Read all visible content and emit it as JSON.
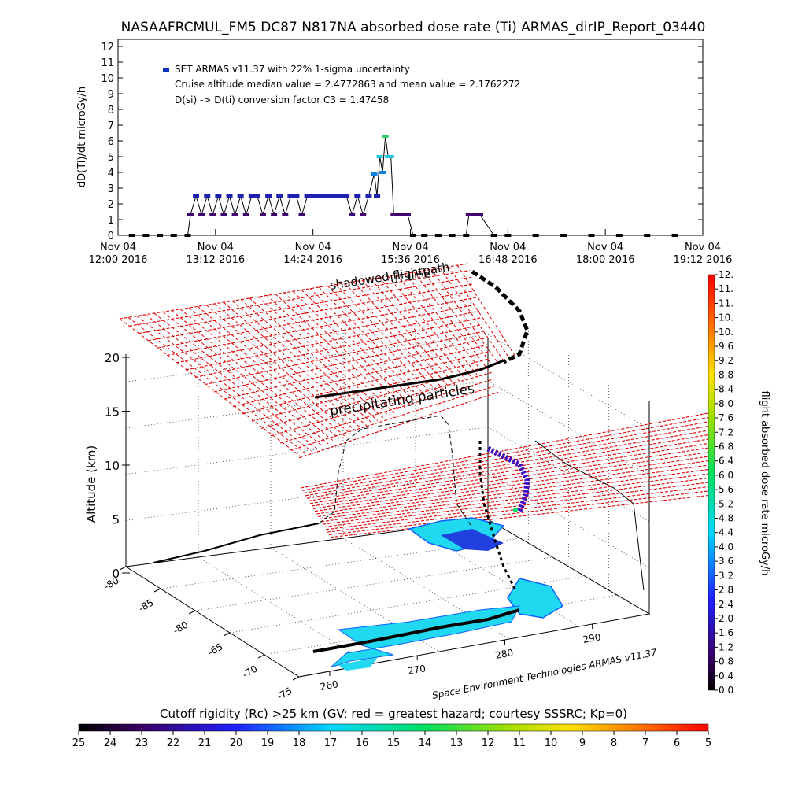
{
  "title": "NASAAFRCMUL_FM5 DC87 N817NA absorbed dose rate (Ti) ARMAS_dirIP_Report_03440",
  "chart_data": [
    {
      "type": "line",
      "ylabel": "dD(Ti)/dt microGy/h",
      "ylim": [
        0,
        12
      ],
      "yticks": [
        "0",
        "1",
        "2",
        "3",
        "4",
        "5",
        "6",
        "7",
        "8",
        "9",
        "10",
        "11",
        "12"
      ],
      "xticks": [
        {
          "l1": "Nov 04",
          "l2": "12:00 2016"
        },
        {
          "l1": "Nov 04",
          "l2": "13:12 2016"
        },
        {
          "l1": "Nov 04",
          "l2": "14:24 2016"
        },
        {
          "l1": "Nov 04",
          "l2": "15:36 2016"
        },
        {
          "l1": "Nov 04",
          "l2": "16:48 2016"
        },
        {
          "l1": "Nov 04",
          "l2": "18:00 2016"
        },
        {
          "l1": "Nov 04",
          "l2": "19:12 2016"
        }
      ],
      "legend": {
        "series_label": "SET ARMAS v11.37 with 22% 1-sigma uncertainty",
        "median_line": "Cruise altitude median value = 2.4772863 and mean value = 2.1762272",
        "conversion_line": "D(si) -> D(ti) conversion factor C3 = 1.47458"
      },
      "series": [
        {
          "x": [
            0.5,
            1.0,
            1.5,
            2.0,
            2.5,
            2.6,
            2.8,
            3.0,
            3.2,
            3.4,
            3.6,
            3.8,
            4.0,
            4.2,
            4.4,
            4.6,
            4.8,
            5.0,
            5.2,
            5.4,
            5.6,
            5.8,
            6.0,
            6.2,
            6.4,
            6.6,
            6.8,
            7.0,
            7.2,
            7.4,
            7.6,
            7.8,
            8.0,
            8.2,
            8.4,
            8.6,
            8.8,
            9.0,
            9.2,
            9.3,
            9.4,
            9.5,
            9.6,
            9.7,
            9.8,
            9.9,
            10.0,
            10.2,
            10.4,
            10.6,
            11.0,
            11.5,
            12.0,
            12.5,
            12.6,
            12.8,
            13.0,
            13.5,
            14.0,
            15.0,
            16.0,
            17.0,
            18.0,
            19.0,
            20.0
          ],
          "y": [
            0,
            0,
            0,
            0,
            0,
            1.3,
            2.5,
            1.3,
            2.5,
            1.3,
            2.5,
            1.3,
            2.5,
            1.3,
            2.5,
            1.3,
            2.5,
            2.5,
            1.3,
            2.5,
            1.3,
            2.5,
            1.3,
            2.5,
            2.5,
            1.3,
            2.5,
            2.5,
            2.5,
            2.5,
            2.5,
            2.5,
            2.5,
            2.5,
            1.3,
            2.5,
            1.3,
            2.5,
            3.9,
            2.5,
            5.0,
            4.0,
            6.3,
            5.0,
            5.0,
            1.3,
            1.3,
            1.3,
            1.3,
            0,
            0,
            0,
            0,
            0,
            1.3,
            1.3,
            1.3,
            0,
            0,
            0,
            0,
            0,
            0,
            0,
            0
          ]
        }
      ]
    },
    {
      "type": "scatter",
      "zlabel": "Altitude (km)",
      "zticks": [
        "0",
        "5",
        "10",
        "15",
        "20"
      ],
      "lat_ticks": [
        "-80",
        "-85",
        "-80",
        "-65",
        "-70",
        "-75"
      ],
      "lon_ticks": [
        "260",
        "270",
        "280",
        "290"
      ],
      "annotations": {
        "shadowed": "shadowed flightpath",
        "ut": "UT time",
        "precip": "precipitating particles",
        "credit": "Space Environment Technologies ARMAS v11.37"
      },
      "colorbar": {
        "label": "flight absorbed dose rate microGy/h",
        "range": [
          0,
          12
        ],
        "ticks": [
          "0.0",
          "0.4",
          "0.8",
          "1.2",
          "1.6",
          "2.0",
          "2.4",
          "2.8",
          "3.2",
          "3.6",
          "4.0",
          "4.4",
          "4.8",
          "5.2",
          "5.6",
          "6.0",
          "6.4",
          "6.8",
          "7.2",
          "7.6",
          "8.0",
          "8.4",
          "8.8",
          "9.2",
          "9.6",
          "10.",
          "10.",
          "11.",
          "11.",
          "12."
        ]
      }
    },
    {
      "type": "heatmap",
      "title": "Cutoff rigidity (Rc) >25 km (GV: red = greatest hazard; courtesy SSSRC; Kp=0)",
      "ticks": [
        "25",
        "24",
        "23",
        "22",
        "21",
        "20",
        "19",
        "18",
        "17",
        "16",
        "15",
        "14",
        "13",
        "12",
        "11",
        "10",
        "9",
        "8",
        "7",
        "6",
        "5"
      ]
    }
  ]
}
